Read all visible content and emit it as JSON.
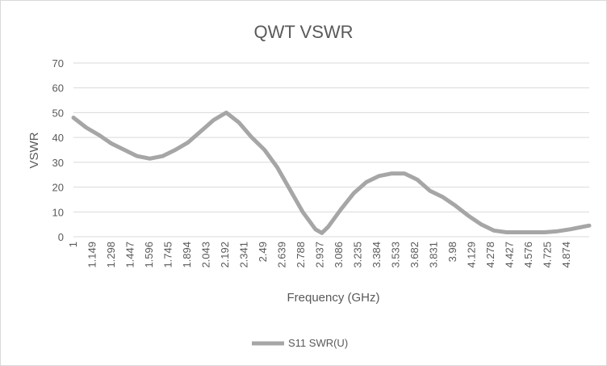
{
  "chart_data": {
    "type": "line",
    "title": "QWT VSWR",
    "xlabel": "Frequency (GHz)",
    "ylabel": "VSWR",
    "xlim": [
      1,
      5.05
    ],
    "ylim": [
      0,
      70
    ],
    "y_ticks": [
      "0",
      "10",
      "20",
      "30",
      "40",
      "50",
      "60",
      "70"
    ],
    "x_ticks": [
      "1",
      "1.149",
      "1.298",
      "1.447",
      "1.596",
      "1.745",
      "1.894",
      "2.043",
      "2.192",
      "2.341",
      "2.49",
      "2.639",
      "2.788",
      "2.937",
      "3.086",
      "3.235",
      "3.384",
      "3.533",
      "3.682",
      "3.831",
      "3.98",
      "4.129",
      "4.278",
      "4.427",
      "4.576",
      "4.725",
      "4.874"
    ],
    "grid": "horizontal",
    "legend_position": "bottom",
    "series": [
      {
        "name": "S11 SWR(U)",
        "color": "#a6a6a6",
        "x": [
          1.0,
          1.1,
          1.2,
          1.3,
          1.4,
          1.5,
          1.6,
          1.7,
          1.8,
          1.9,
          2.0,
          2.1,
          2.2,
          2.3,
          2.4,
          2.5,
          2.6,
          2.7,
          2.8,
          2.9,
          2.95,
          3.0,
          3.1,
          3.2,
          3.3,
          3.4,
          3.5,
          3.6,
          3.7,
          3.8,
          3.9,
          4.0,
          4.1,
          4.2,
          4.3,
          4.4,
          4.5,
          4.6,
          4.7,
          4.8,
          4.9,
          5.0,
          5.05
        ],
        "values": [
          48,
          44,
          41,
          37.5,
          35,
          32.5,
          31.5,
          32.5,
          35,
          38,
          42.5,
          47,
          50,
          46,
          40,
          35,
          28,
          19,
          10,
          3,
          1.5,
          4,
          11,
          17.5,
          22,
          24.5,
          25.5,
          25.5,
          23,
          18.5,
          16,
          12.5,
          8.5,
          5,
          2.5,
          1.8,
          1.8,
          1.8,
          1.8,
          2.2,
          3,
          4,
          4.5
        ]
      }
    ]
  }
}
